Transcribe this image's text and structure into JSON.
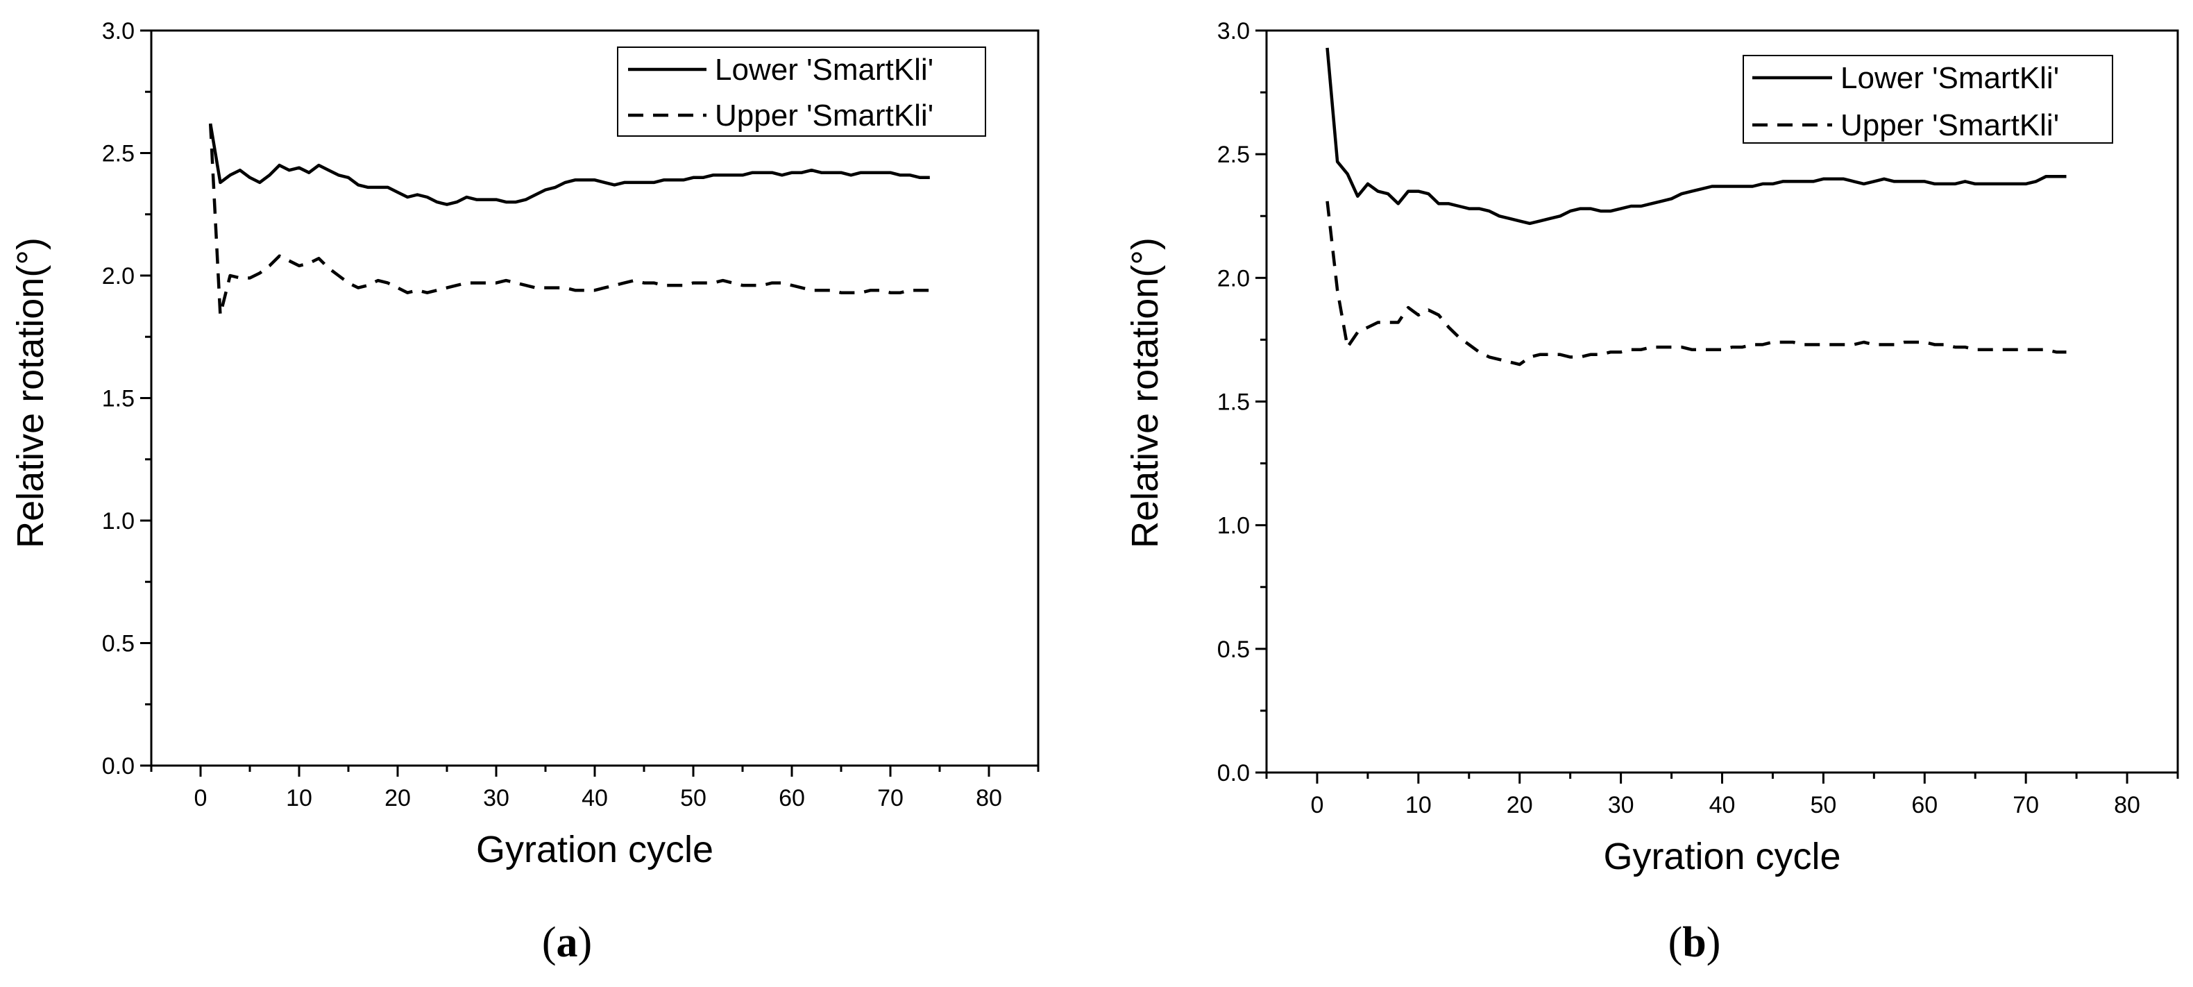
{
  "chart_data": [
    {
      "id": "a",
      "type": "line",
      "panel_label": "a",
      "xlabel": "Gyration cycle",
      "ylabel": "Relative rotation(°)",
      "xlim": [
        -5,
        85
      ],
      "ylim": [
        0.0,
        3.0
      ],
      "xticks": [
        "0",
        "10",
        "20",
        "30",
        "40",
        "50",
        "60",
        "70",
        "80"
      ],
      "yticks": [
        "0.0",
        "0.5",
        "1.0",
        "1.5",
        "2.0",
        "2.5",
        "3.0"
      ],
      "legend_position": "top-right",
      "series": [
        {
          "name": "Lower 'SmartKli'",
          "style": "solid",
          "x": [
            1,
            2,
            3,
            4,
            5,
            6,
            7,
            8,
            9,
            10,
            11,
            12,
            13,
            14,
            15,
            16,
            17,
            18,
            19,
            20,
            21,
            22,
            23,
            24,
            25,
            26,
            27,
            28,
            29,
            30,
            31,
            32,
            33,
            34,
            35,
            36,
            37,
            38,
            39,
            40,
            41,
            42,
            43,
            44,
            45,
            46,
            47,
            48,
            49,
            50,
            51,
            52,
            53,
            54,
            55,
            56,
            57,
            58,
            59,
            60,
            61,
            62,
            63,
            64,
            65,
            66,
            67,
            68,
            69,
            70,
            71,
            72,
            73,
            74
          ],
          "values": [
            2.62,
            2.38,
            2.41,
            2.43,
            2.4,
            2.38,
            2.41,
            2.45,
            2.43,
            2.44,
            2.42,
            2.45,
            2.43,
            2.41,
            2.4,
            2.37,
            2.36,
            2.36,
            2.36,
            2.34,
            2.32,
            2.33,
            2.32,
            2.3,
            2.29,
            2.3,
            2.32,
            2.31,
            2.31,
            2.31,
            2.3,
            2.3,
            2.31,
            2.33,
            2.35,
            2.36,
            2.38,
            2.39,
            2.39,
            2.39,
            2.38,
            2.37,
            2.38,
            2.38,
            2.38,
            2.38,
            2.39,
            2.39,
            2.39,
            2.4,
            2.4,
            2.41,
            2.41,
            2.41,
            2.41,
            2.42,
            2.42,
            2.42,
            2.41,
            2.42,
            2.42,
            2.43,
            2.42,
            2.42,
            2.42,
            2.41,
            2.42,
            2.42,
            2.42,
            2.42,
            2.41,
            2.41,
            2.4,
            2.4
          ]
        },
        {
          "name": "Upper 'SmartKli'",
          "style": "dashed",
          "x": [
            1,
            2,
            3,
            4,
            5,
            6,
            7,
            8,
            9,
            10,
            11,
            12,
            13,
            14,
            15,
            16,
            17,
            18,
            19,
            20,
            21,
            22,
            23,
            24,
            25,
            26,
            27,
            28,
            29,
            30,
            31,
            32,
            33,
            34,
            35,
            36,
            37,
            38,
            39,
            40,
            41,
            42,
            43,
            44,
            45,
            46,
            47,
            48,
            49,
            50,
            51,
            52,
            53,
            54,
            55,
            56,
            57,
            58,
            59,
            60,
            61,
            62,
            63,
            64,
            65,
            66,
            67,
            68,
            69,
            70,
            71,
            72,
            73,
            74
          ],
          "values": [
            2.62,
            1.84,
            2.0,
            1.99,
            1.99,
            2.01,
            2.04,
            2.08,
            2.06,
            2.04,
            2.05,
            2.07,
            2.03,
            2.0,
            1.97,
            1.95,
            1.96,
            1.98,
            1.97,
            1.95,
            1.93,
            1.94,
            1.93,
            1.94,
            1.95,
            1.96,
            1.97,
            1.97,
            1.97,
            1.97,
            1.98,
            1.97,
            1.96,
            1.95,
            1.95,
            1.95,
            1.95,
            1.94,
            1.94,
            1.94,
            1.95,
            1.96,
            1.97,
            1.98,
            1.97,
            1.97,
            1.96,
            1.96,
            1.96,
            1.97,
            1.97,
            1.97,
            1.98,
            1.97,
            1.96,
            1.96,
            1.96,
            1.97,
            1.97,
            1.96,
            1.95,
            1.94,
            1.94,
            1.94,
            1.93,
            1.93,
            1.93,
            1.94,
            1.94,
            1.93,
            1.93,
            1.94,
            1.94,
            1.94
          ]
        }
      ]
    },
    {
      "id": "b",
      "type": "line",
      "panel_label": "b",
      "xlabel": "Gyration cycle",
      "ylabel": "Relative rotation(°)",
      "xlim": [
        -5,
        85
      ],
      "ylim": [
        0.0,
        3.0
      ],
      "xticks": [
        "0",
        "10",
        "20",
        "30",
        "40",
        "50",
        "60",
        "70",
        "80"
      ],
      "yticks": [
        "0.0",
        "0.5",
        "1.0",
        "1.5",
        "2.0",
        "2.5",
        "3.0"
      ],
      "legend_position": "top-right",
      "series": [
        {
          "name": "Lower 'SmartKli'",
          "style": "solid",
          "x": [
            1,
            2,
            3,
            4,
            5,
            6,
            7,
            8,
            9,
            10,
            11,
            12,
            13,
            14,
            15,
            16,
            17,
            18,
            19,
            20,
            21,
            22,
            23,
            24,
            25,
            26,
            27,
            28,
            29,
            30,
            31,
            32,
            33,
            34,
            35,
            36,
            37,
            38,
            39,
            40,
            41,
            42,
            43,
            44,
            45,
            46,
            47,
            48,
            49,
            50,
            51,
            52,
            53,
            54,
            55,
            56,
            57,
            58,
            59,
            60,
            61,
            62,
            63,
            64,
            65,
            66,
            67,
            68,
            69,
            70,
            71,
            72,
            73,
            74
          ],
          "values": [
            2.93,
            2.47,
            2.42,
            2.33,
            2.38,
            2.35,
            2.34,
            2.3,
            2.35,
            2.35,
            2.34,
            2.3,
            2.3,
            2.29,
            2.28,
            2.28,
            2.27,
            2.25,
            2.24,
            2.23,
            2.22,
            2.23,
            2.24,
            2.25,
            2.27,
            2.28,
            2.28,
            2.27,
            2.27,
            2.28,
            2.29,
            2.29,
            2.3,
            2.31,
            2.32,
            2.34,
            2.35,
            2.36,
            2.37,
            2.37,
            2.37,
            2.37,
            2.37,
            2.38,
            2.38,
            2.39,
            2.39,
            2.39,
            2.39,
            2.4,
            2.4,
            2.4,
            2.39,
            2.38,
            2.39,
            2.4,
            2.39,
            2.39,
            2.39,
            2.39,
            2.38,
            2.38,
            2.38,
            2.39,
            2.38,
            2.38,
            2.38,
            2.38,
            2.38,
            2.38,
            2.39,
            2.41,
            2.41,
            2.41
          ]
        },
        {
          "name": "Upper 'SmartKli'",
          "style": "dashed",
          "x": [
            1,
            2,
            3,
            4,
            5,
            6,
            7,
            8,
            9,
            10,
            11,
            12,
            13,
            14,
            15,
            16,
            17,
            18,
            19,
            20,
            21,
            22,
            23,
            24,
            25,
            26,
            27,
            28,
            29,
            30,
            31,
            32,
            33,
            34,
            35,
            36,
            37,
            38,
            39,
            40,
            41,
            42,
            43,
            44,
            45,
            46,
            47,
            48,
            49,
            50,
            51,
            52,
            53,
            54,
            55,
            56,
            57,
            58,
            59,
            60,
            61,
            62,
            63,
            64,
            65,
            66,
            67,
            68,
            69,
            70,
            71,
            72,
            73,
            74
          ],
          "values": [
            2.31,
            1.95,
            1.72,
            1.78,
            1.8,
            1.82,
            1.82,
            1.82,
            1.88,
            1.85,
            1.87,
            1.85,
            1.8,
            1.76,
            1.73,
            1.7,
            1.68,
            1.67,
            1.66,
            1.65,
            1.68,
            1.69,
            1.69,
            1.69,
            1.68,
            1.68,
            1.69,
            1.69,
            1.7,
            1.7,
            1.71,
            1.71,
            1.72,
            1.72,
            1.72,
            1.72,
            1.71,
            1.71,
            1.71,
            1.71,
            1.72,
            1.72,
            1.73,
            1.73,
            1.74,
            1.74,
            1.74,
            1.73,
            1.73,
            1.73,
            1.73,
            1.73,
            1.73,
            1.74,
            1.73,
            1.73,
            1.73,
            1.74,
            1.74,
            1.74,
            1.73,
            1.73,
            1.72,
            1.72,
            1.71,
            1.71,
            1.71,
            1.71,
            1.71,
            1.71,
            1.71,
            1.71,
            1.7,
            1.7
          ]
        }
      ]
    }
  ]
}
